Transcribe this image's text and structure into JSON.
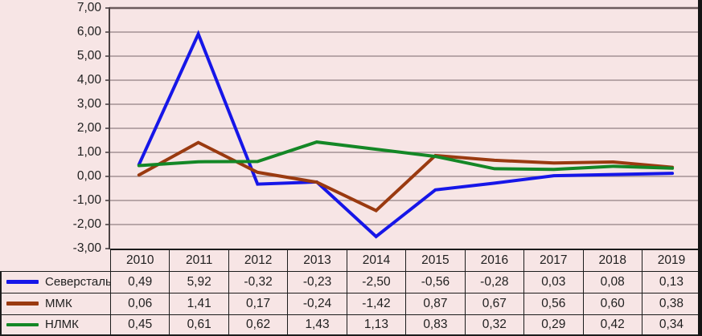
{
  "chart": {
    "y_axis_tick_labels": [
      "7,00",
      "6,00",
      "5,00",
      "4,00",
      "3,00",
      "2,00",
      "1,00",
      "0,00",
      "-1,00",
      "-2,00",
      "-3,00"
    ]
  },
  "chart_data": {
    "type": "line",
    "categories": [
      "2010",
      "2011",
      "2012",
      "2013",
      "2014",
      "2015",
      "2016",
      "2017",
      "2018",
      "2019"
    ],
    "series": [
      {
        "name": "Северсталь",
        "color": "#1616E8",
        "values": [
          0.49,
          5.92,
          -0.32,
          -0.23,
          -2.5,
          -0.56,
          -0.28,
          0.03,
          0.08,
          0.13
        ],
        "values_display": [
          "0,49",
          "5,92",
          "-0,32",
          "-0,23",
          "-2,50",
          "-0,56",
          "-0,28",
          "0,03",
          "0,08",
          "0,13"
        ]
      },
      {
        "name": "ММК",
        "color": "#9A3A10",
        "values": [
          0.06,
          1.41,
          0.17,
          -0.24,
          -1.42,
          0.87,
          0.67,
          0.56,
          0.6,
          0.38
        ],
        "values_display": [
          "0,06",
          "1,41",
          "0,17",
          "-0,24",
          "-1,42",
          "0,87",
          "0,67",
          "0,56",
          "0,60",
          "0,38"
        ]
      },
      {
        "name": "НЛМК",
        "color": "#148726",
        "values": [
          0.45,
          0.61,
          0.62,
          1.43,
          1.13,
          0.83,
          0.32,
          0.29,
          0.42,
          0.34
        ],
        "values_display": [
          "0,45",
          "0,61",
          "0,62",
          "1,43",
          "1,13",
          "0,83",
          "0,32",
          "0,29",
          "0,42",
          "0,34"
        ]
      }
    ],
    "ylim": [
      -3,
      7
    ],
    "y_tick_step": 1,
    "grid": true,
    "legend_position": "left-of-data-table"
  },
  "colors": {
    "background": "#F7E5E5",
    "plot_top_border": "#6B5B5C",
    "axis_line": "#4A4243",
    "gridline": "#A39293",
    "table_border": "#1C1C1C",
    "text": "#1F1F1F",
    "outer_edge": "#141414"
  }
}
